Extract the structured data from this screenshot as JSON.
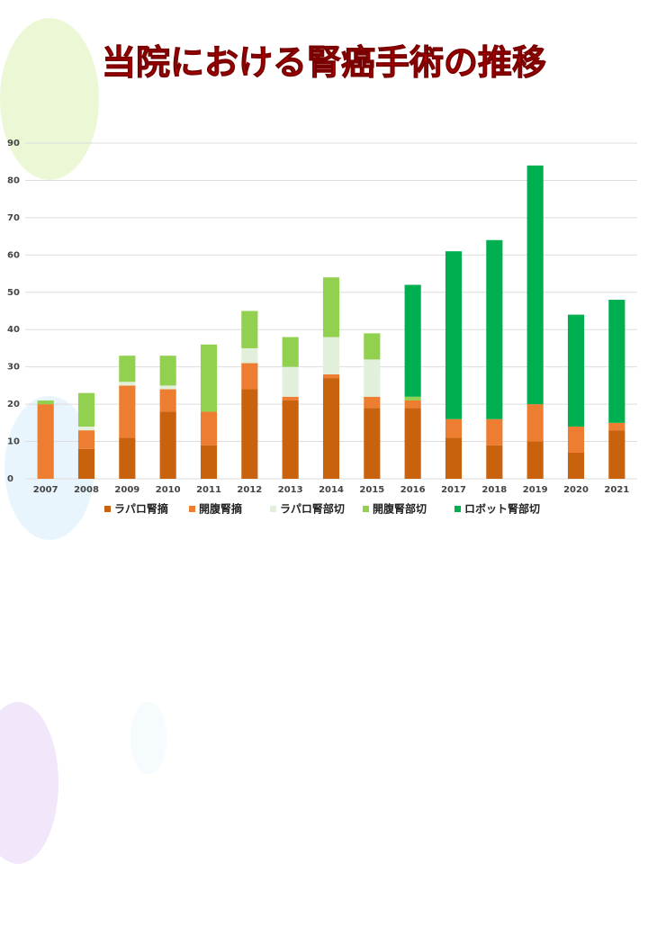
{
  "chart_data": {
    "type": "stacked_bar",
    "title": "当院における腎癌手術の推移",
    "categories": [
      "2007",
      "2008",
      "2009",
      "2010",
      "2011",
      "2012",
      "2013",
      "2014",
      "2015",
      "2016",
      "2017",
      "2018",
      "2019",
      "2020",
      "2021"
    ],
    "series": [
      {
        "name": "ラパロ腎摘",
        "color": "#c9620c",
        "values": [
          0,
          8,
          11,
          18,
          9,
          24,
          21,
          27,
          19,
          19,
          11,
          9,
          10,
          7,
          13
        ]
      },
      {
        "name": "開腹腎摘",
        "color": "#ed7d31",
        "values": [
          20,
          5,
          14,
          6,
          9,
          7,
          1,
          1,
          3,
          2,
          5,
          7,
          10,
          7,
          2
        ]
      },
      {
        "name": "ラパロ腎部切",
        "color": "#e2efda",
        "values": [
          0,
          1,
          1,
          1,
          0,
          4,
          8,
          10,
          10,
          0,
          0,
          0,
          0,
          0,
          0
        ]
      },
      {
        "name": "開腹腎部切",
        "color": "#92d050",
        "values": [
          1,
          9,
          7,
          8,
          18,
          10,
          8,
          16,
          7,
          1,
          0,
          0,
          0,
          0,
          0
        ]
      },
      {
        "name": "ロボット腎部切",
        "color": "#00b050",
        "values": [
          0,
          0,
          0,
          0,
          0,
          0,
          0,
          0,
          0,
          30,
          45,
          48,
          64,
          30,
          33
        ]
      }
    ],
    "ylim": [
      0,
      90
    ],
    "yticks": [
      0,
      10,
      20,
      30,
      40,
      50,
      60,
      70,
      80,
      90
    ],
    "grid": true,
    "legend": "bottom"
  }
}
